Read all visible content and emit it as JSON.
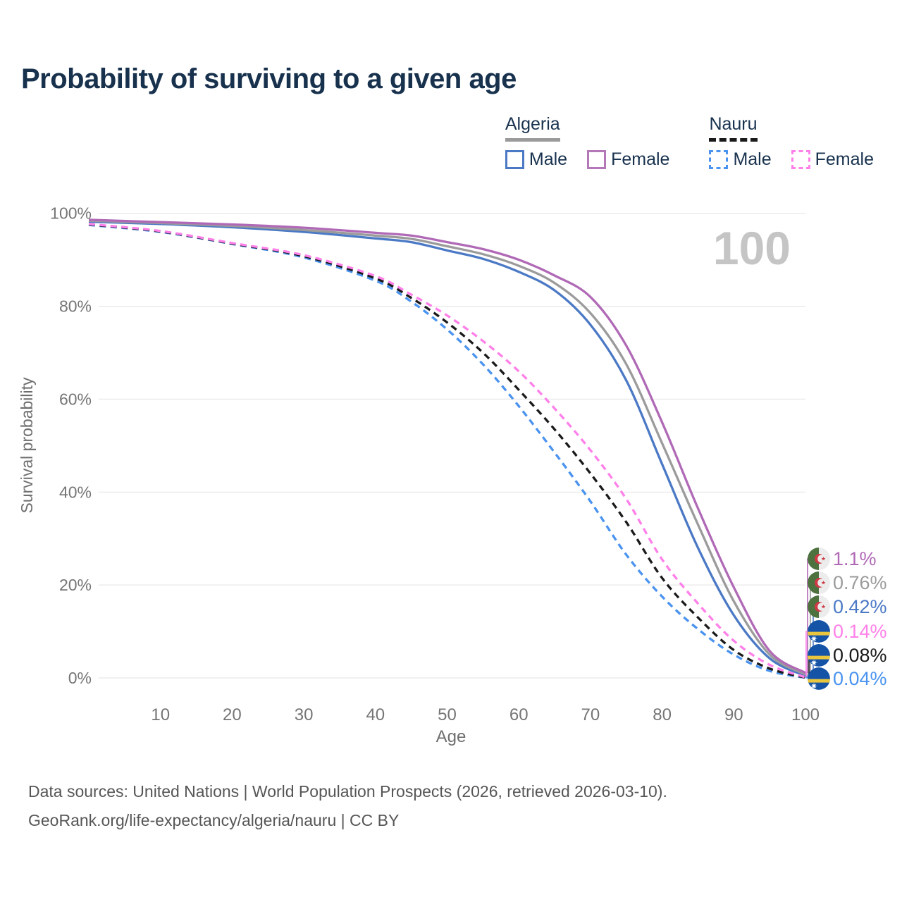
{
  "title": "Probability of surviving to a given age",
  "watermark": "100",
  "legend": {
    "groups": [
      {
        "country": "Algeria",
        "line_style": "solid",
        "underline_color": "#9a9a9a",
        "items": [
          {
            "label": "Male",
            "color": "#4b79c5"
          },
          {
            "label": "Female",
            "color": "#b478b8"
          }
        ]
      },
      {
        "country": "Nauru",
        "line_style": "dashed",
        "underline_color": "#1a1a1a",
        "items": [
          {
            "label": "Male",
            "color": "#4a93ef"
          },
          {
            "label": "Female",
            "color": "#ff80e9"
          }
        ]
      }
    ]
  },
  "chart_data": {
    "type": "line",
    "title": "Probability of surviving to a given age",
    "xlabel": "Age",
    "ylabel": "Survival probability",
    "xlim": [
      0,
      100
    ],
    "ylim": [
      0,
      100
    ],
    "grid": "horizontal",
    "legend_position": "top-right",
    "x_ticks": [
      10,
      20,
      30,
      40,
      50,
      60,
      70,
      80,
      90,
      100
    ],
    "y_ticks": [
      "0%",
      "20%",
      "40%",
      "60%",
      "80%",
      "100%"
    ],
    "x": [
      0,
      10,
      20,
      30,
      40,
      45,
      50,
      55,
      60,
      65,
      70,
      75,
      80,
      85,
      90,
      95,
      100
    ],
    "series": [
      {
        "name": "Algeria Female",
        "country": "Algeria",
        "sex": "Female",
        "color": "#b069b6",
        "dash": "solid",
        "flag": "algeria",
        "end_label": "1.1%",
        "values": [
          98.6,
          98.1,
          97.6,
          96.9,
          95.8,
          95.2,
          93.8,
          92.3,
          90.0,
          86.6,
          82.0,
          71.5,
          55.0,
          36.5,
          19.5,
          5.8,
          1.1
        ]
      },
      {
        "name": "Algeria Both sexes",
        "country": "Algeria",
        "sex": "Both sexes",
        "color": "#9b9b9b",
        "dash": "solid",
        "flag": "algeria",
        "end_label": "0.76%",
        "values": [
          98.4,
          97.9,
          97.3,
          96.4,
          95.2,
          94.5,
          92.9,
          91.2,
          88.7,
          85.0,
          78.5,
          67.5,
          50.5,
          33.0,
          16.5,
          5.0,
          0.76
        ]
      },
      {
        "name": "Algeria Male",
        "country": "Algeria",
        "sex": "Male",
        "color": "#4b79c5",
        "dash": "solid",
        "flag": "algeria",
        "end_label": "0.42%",
        "values": [
          98.2,
          97.7,
          97.0,
          96.0,
          94.6,
          93.8,
          92.0,
          90.2,
          87.4,
          83.4,
          76.0,
          64.0,
          46.0,
          28.0,
          13.5,
          4.2,
          0.42
        ]
      },
      {
        "name": "Nauru Female",
        "country": "Nauru",
        "sex": "Female",
        "color": "#ff80e9",
        "dash": "dashed",
        "flag": "nauru",
        "end_label": "0.14%",
        "values": [
          97.7,
          96.2,
          93.6,
          91.0,
          86.5,
          82.5,
          78.0,
          72.5,
          66.0,
          58.0,
          49.0,
          38.5,
          25.5,
          16.0,
          8.0,
          2.8,
          0.14
        ]
      },
      {
        "name": "Nauru Both sexes",
        "country": "Nauru",
        "sex": "Both sexes",
        "color": "#1a1a1a",
        "dash": "dashed",
        "flag": "nauru",
        "end_label": "0.08%",
        "values": [
          97.6,
          96.1,
          93.5,
          90.8,
          86.0,
          81.8,
          76.5,
          70.0,
          62.0,
          53.5,
          44.0,
          33.5,
          21.5,
          13.0,
          6.0,
          2.0,
          0.08
        ]
      },
      {
        "name": "Nauru Male",
        "country": "Nauru",
        "sex": "Male",
        "color": "#4a93ef",
        "dash": "dashed",
        "flag": "nauru",
        "end_label": "0.04%",
        "values": [
          97.5,
          96.0,
          93.4,
          90.5,
          85.5,
          81.0,
          75.0,
          67.5,
          58.5,
          48.5,
          38.0,
          26.5,
          17.5,
          10.5,
          5.0,
          1.5,
          0.04
        ]
      }
    ]
  },
  "colors": {
    "title": "#18324e",
    "axis_text": "#757575",
    "axis_label_text": "#6e6e6e",
    "grid": "#e7e7e7",
    "watermark": "#c5c5c5",
    "footer_text": "#565656",
    "algeria_flag_green": "#4e7140",
    "algeria_flag_white": "#ececec",
    "algeria_flag_red": "#cf3a45",
    "nauru_flag_blue": "#1553a7",
    "nauru_flag_yellow": "#eac63e"
  },
  "footer": {
    "line1": "Data sources: United Nations | World Population Prospects (2026, retrieved 2026-03-10).",
    "line2": "GeoRank.org/life-expectancy/algeria/nauru | CC BY"
  }
}
